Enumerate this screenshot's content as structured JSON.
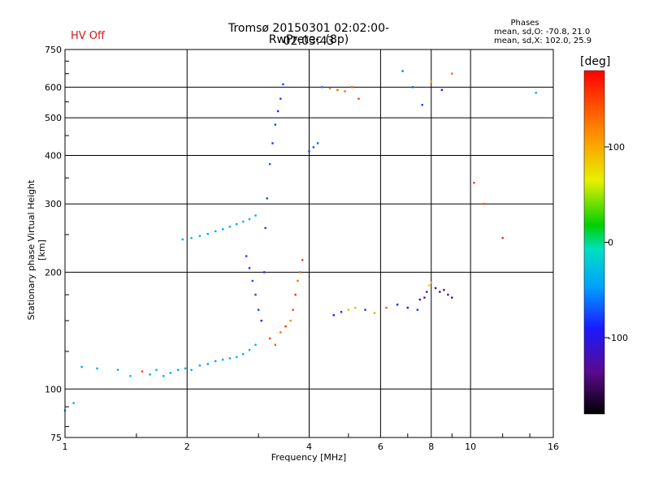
{
  "header": {
    "status": "HV Off",
    "title": "Tromsø 20150301 02:02:00-02:03:43",
    "subtitle": "RwPretec (8p)",
    "phases_title": "Phases",
    "phases_o": "mean, sd,O: -70.8, 21.0",
    "phases_x": "mean, sd,X: 102.0, 25.9"
  },
  "colors": {
    "status": "#d01818",
    "grid": "#000000"
  },
  "chart_data": {
    "type": "scatter",
    "title": "Tromsø 20150301 02:02:00-02:03:43",
    "subtitle": "RwPretec (8p)",
    "xlabel": "Frequency [MHz]",
    "ylabel": "Stationary phase Virtual Height [km]",
    "x_scale": "log",
    "y_scale": "log",
    "xlim": [
      1,
      16
    ],
    "ylim": [
      75,
      750
    ],
    "x_ticks": [
      "1",
      "2",
      "4",
      "6",
      "8",
      "10",
      "16"
    ],
    "y_ticks": [
      "75",
      "100",
      "200",
      "300",
      "400",
      "500",
      "600",
      "750"
    ],
    "grid": true,
    "colorbar": {
      "label": "[deg]",
      "range": [
        -180,
        180
      ],
      "ticks": [
        "100",
        "0",
        "-100"
      ]
    },
    "series": [
      {
        "name": "",
        "x": [
          1.0,
          1.05,
          1.1,
          1.2,
          1.35,
          1.45,
          1.55,
          1.62,
          1.68,
          1.75,
          1.82,
          1.9,
          1.98,
          2.05,
          2.15,
          2.25,
          2.35,
          2.45,
          2.55,
          2.65,
          2.75,
          2.85,
          2.95
        ],
        "y": [
          88,
          92,
          114,
          113,
          112,
          108,
          111,
          109,
          112,
          108,
          110,
          112,
          113,
          112,
          115,
          116,
          118,
          119,
          120,
          121,
          123,
          126,
          130
        ],
        "phase": [
          -40,
          -40,
          -45,
          -40,
          -35,
          -30,
          150,
          -40,
          -35,
          -40,
          -40,
          -45,
          -40,
          -40,
          -40,
          -40,
          -45,
          -40,
          -40,
          -35,
          -40,
          -35,
          -35
        ]
      },
      {
        "name": "",
        "x": [
          1.95,
          2.05,
          2.15,
          2.25,
          2.35,
          2.45,
          2.55,
          2.65,
          2.75,
          2.85,
          2.95
        ],
        "y": [
          243,
          245,
          248,
          251,
          255,
          258,
          262,
          266,
          270,
          274,
          280
        ],
        "phase": [
          -40,
          -40,
          -35,
          -40,
          -40,
          -45,
          -40,
          -40,
          -35,
          -40,
          -40
        ]
      },
      {
        "name": "",
        "x": [
          2.8,
          2.85,
          2.9,
          2.95,
          3.0,
          3.05,
          3.1,
          3.12,
          3.15,
          3.2,
          3.25,
          3.3,
          3.35,
          3.4,
          3.45
        ],
        "y": [
          220,
          205,
          190,
          175,
          160,
          150,
          200,
          260,
          310,
          380,
          430,
          480,
          520,
          560,
          610
        ],
        "phase": [
          -75,
          -80,
          -70,
          -80,
          -75,
          -85,
          -85,
          -80,
          -75,
          -70,
          -80,
          -75,
          -85,
          -80,
          -75
        ]
      },
      {
        "name": "",
        "x": [
          3.2,
          3.3,
          3.4,
          3.5,
          3.6,
          3.65,
          3.7,
          3.75,
          3.8,
          3.85
        ],
        "y": [
          135,
          130,
          140,
          145,
          150,
          160,
          175,
          190,
          200,
          215
        ],
        "phase": [
          150,
          140,
          130,
          160,
          120,
          150,
          160,
          130,
          140,
          155
        ]
      },
      {
        "name": "",
        "x": [
          4.0,
          4.1,
          4.2,
          4.3,
          4.5,
          4.7,
          4.9,
          5.1,
          5.3
        ],
        "y": [
          410,
          420,
          430,
          600,
          595,
          590,
          585,
          600,
          560
        ],
        "phase": [
          -80,
          -75,
          -70,
          -60,
          120,
          140,
          130,
          140,
          150
        ]
      },
      {
        "name": "",
        "x": [
          4.6,
          4.8,
          5.0,
          5.2,
          5.5,
          5.8,
          6.2,
          6.6,
          7.0,
          7.4
        ],
        "y": [
          155,
          158,
          160,
          162,
          160,
          157,
          162,
          165,
          162,
          160
        ],
        "phase": [
          -90,
          -85,
          90,
          95,
          -80,
          100,
          140,
          -90,
          -100,
          -80
        ]
      },
      {
        "name": "",
        "x": [
          7.5,
          7.7,
          7.8,
          7.9,
          8.0,
          8.2,
          8.4,
          8.6,
          8.8,
          9.0
        ],
        "y": [
          170,
          172,
          178,
          185,
          188,
          182,
          178,
          180,
          175,
          172
        ],
        "phase": [
          -120,
          -130,
          -125,
          80,
          90,
          -140,
          -130,
          -135,
          -120,
          -130
        ]
      },
      {
        "name": "",
        "x": [
          6.8,
          7.2,
          7.6,
          8.0,
          8.5,
          9.0,
          10.2,
          10.8,
          12.0,
          14.5
        ],
        "y": [
          660,
          600,
          540,
          620,
          590,
          650,
          340,
          300,
          245,
          580
        ],
        "phase": [
          -60,
          -70,
          -80,
          110,
          -100,
          130,
          150,
          140,
          160,
          -40
        ]
      }
    ]
  }
}
